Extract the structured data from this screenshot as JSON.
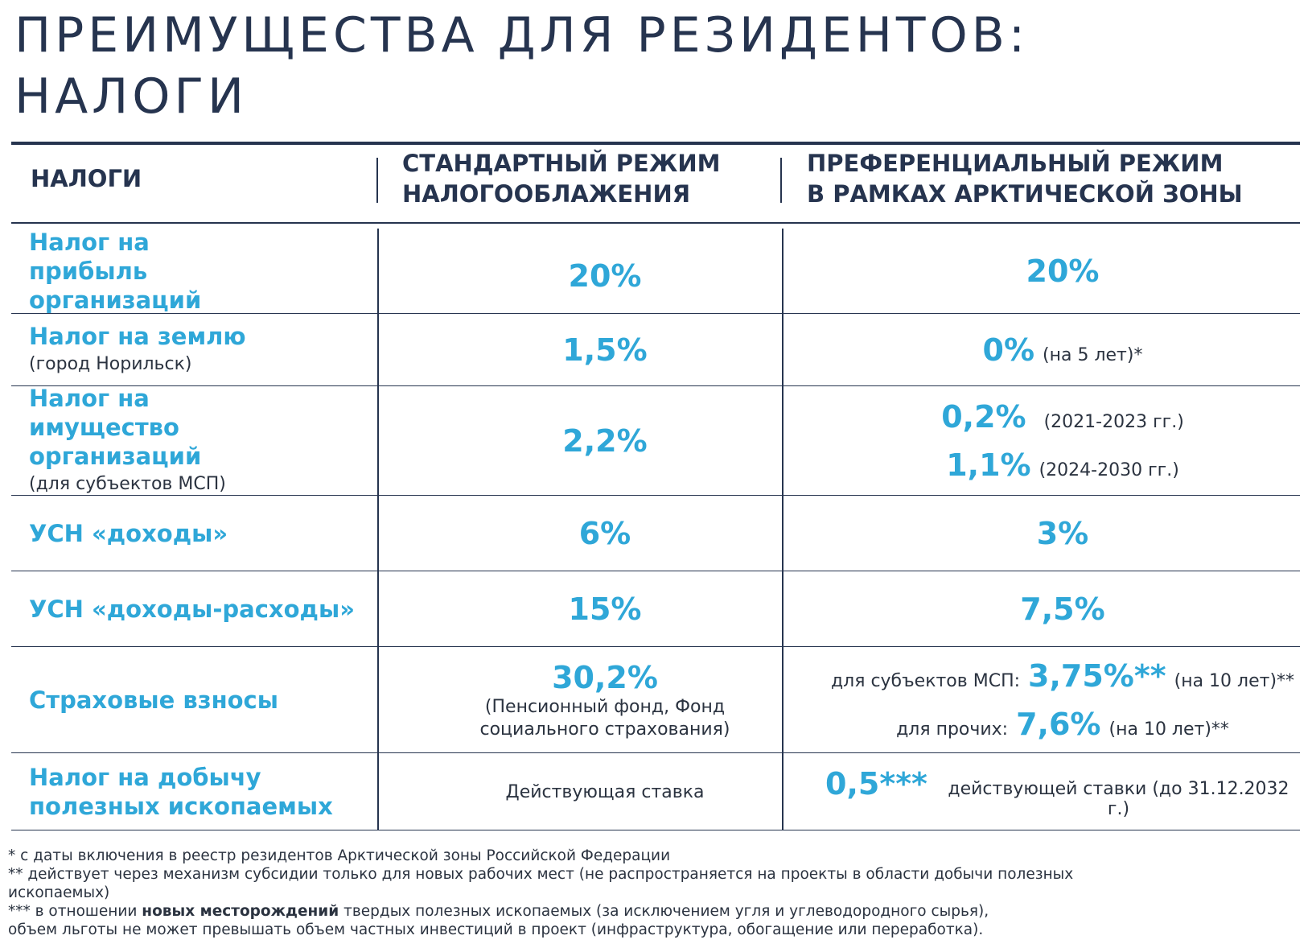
{
  "title": {
    "line1": "ПРЕИМУЩЕСТВА ДЛЯ РЕЗИДЕНТОВ:",
    "line2": "НАЛОГИ"
  },
  "header": {
    "col1": "НАЛОГИ",
    "col2_line1": "СТАНДАРТНЫЙ РЕЖИМ",
    "col2_line2": "НАЛОГООБЛАЖЕНИЯ",
    "col3_line1": "ПРЕФЕРЕНЦИАЛЬНЫЙ РЕЖИМ",
    "col3_line2": "В РАМКАХ АРКТИЧЕСКОЙ ЗОНЫ"
  },
  "rows": {
    "profit": {
      "label": "Налог на прибыль организаций",
      "standard": "20%",
      "preferential": "20%"
    },
    "land": {
      "label": "Налог на землю",
      "sublabel": "(город Норильск)",
      "standard": "1,5%",
      "preferential": "0%",
      "preferential_note": "(на 5 лет)*"
    },
    "property": {
      "label": "Налог на имущество организаций",
      "sublabel": "(для субъектов МСП)",
      "standard": "2,2%",
      "pref1_value": "0,2%",
      "pref1_note": "(2021-2023 гг.)",
      "pref2_value": "1,1%",
      "pref2_note": "(2024-2030 гг.)"
    },
    "usn_income": {
      "label": "УСН «доходы»",
      "standard": "6%",
      "preferential": "3%"
    },
    "usn_income_expense": {
      "label": "УСН «доходы-расходы»",
      "standard": "15%",
      "preferential": "7,5%"
    },
    "insurance": {
      "label": "Страховые взносы",
      "standard": "30,2%",
      "standard_note_line1": "(Пенсионный фонд,  Фонд",
      "standard_note_line2": "социального страхования)",
      "pref1_prefix": "для субъектов МСП:",
      "pref1_value": "3,75%**",
      "pref1_note": "(на 10 лет)**",
      "pref2_prefix": "для прочих:",
      "pref2_value": "7,6%",
      "pref2_note": "(на 10 лет)**"
    },
    "mining": {
      "label_line1": "Налог на добычу",
      "label_line2": "полезных  ископаемых",
      "standard": "Действующая ставка",
      "pref_value": "0,5***",
      "pref_note": "действующей ставки (до 31.12.2032 г.)"
    }
  },
  "footnotes": {
    "note1": "* с даты включения в реестр резидентов Арктической зоны Российской Федерации",
    "note2_line1": "** действует через механизм субсидии только для новых рабочих мест (не распространяется на проекты в области добычи полезных",
    "note2_line2": "ископаемых)",
    "note3_prefix": "*** в отношении",
    "note3_bold": "новых месторождений",
    "note3_rest": "твердых полезных ископаемых (за исключением угля и углеводородного сырья),",
    "note3_line2": "объем льготы не может превышать объем частных инвестиций в проект (инфраструктура, обогащение или переработка)."
  }
}
